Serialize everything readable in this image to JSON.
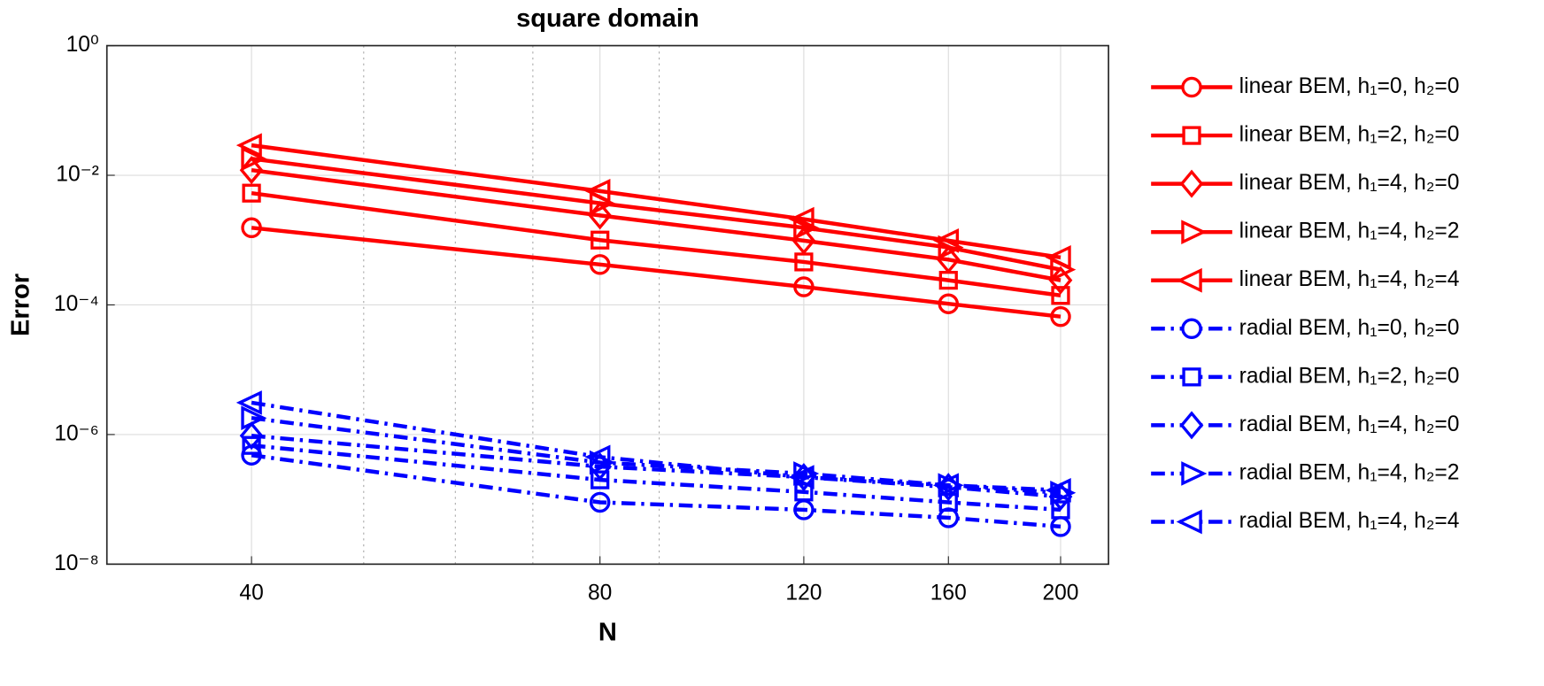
{
  "chart_data": {
    "type": "line",
    "title": "square domain",
    "xlabel": "N",
    "ylabel": "Error",
    "xscale": "log",
    "yscale": "log",
    "grid": true,
    "legend": "outside-right",
    "xlim": [
      30,
      220
    ],
    "xticks": [
      40,
      80,
      120,
      160,
      200
    ],
    "xminorticks": [
      50,
      60,
      70,
      90
    ],
    "ylim": [
      1e-08,
      1
    ],
    "yticks": [
      {
        "value": 1e-08,
        "label": "10⁻⁸"
      },
      {
        "value": 1e-06,
        "label": "10⁻⁶"
      },
      {
        "value": 0.0001,
        "label": "10⁻⁴"
      },
      {
        "value": 0.01,
        "label": "10⁻²"
      },
      {
        "value": 1,
        "label": "10⁰"
      }
    ],
    "x": [
      40,
      80,
      120,
      160,
      200
    ],
    "series": [
      {
        "name": "linear BEM, h₁=0, h₂=0",
        "color": "#ff0000",
        "marker": "circle",
        "linestyle": "solid",
        "values": [
          0.00155,
          0.00042,
          0.00019,
          0.000104,
          6.6e-05
        ]
      },
      {
        "name": "linear BEM, h₁=2, h₂=0",
        "color": "#ff0000",
        "marker": "square",
        "linestyle": "solid",
        "values": [
          0.0053,
          0.001,
          0.00046,
          0.00024,
          0.00014
        ]
      },
      {
        "name": "linear BEM, h₁=4, h₂=0",
        "color": "#ff0000",
        "marker": "diamond",
        "linestyle": "solid",
        "values": [
          0.012,
          0.0024,
          0.00098,
          0.0005,
          0.00024
        ]
      },
      {
        "name": "linear BEM, h₁=4, h₂=2",
        "color": "#ff0000",
        "marker": "triangle-right",
        "linestyle": "solid",
        "values": [
          0.018,
          0.0037,
          0.00155,
          0.00077,
          0.00035
        ]
      },
      {
        "name": "linear BEM, h₁=4, h₂=4",
        "color": "#ff0000",
        "marker": "triangle-left",
        "linestyle": "solid",
        "values": [
          0.029,
          0.0057,
          0.0021,
          0.00098,
          0.00054
        ]
      },
      {
        "name": "radial BEM, h₁=0, h₂=0",
        "color": "#0000ff",
        "marker": "circle",
        "linestyle": "dashdot",
        "values": [
          4.8e-07,
          9e-08,
          6.9e-08,
          5.2e-08,
          3.8e-08
        ]
      },
      {
        "name": "radial BEM, h₁=2, h₂=0",
        "color": "#0000ff",
        "marker": "square",
        "linestyle": "dashdot",
        "values": [
          6.8e-07,
          2e-07,
          1.3e-07,
          9e-08,
          6.9e-08
        ]
      },
      {
        "name": "radial BEM, h₁=4, h₂=0",
        "color": "#0000ff",
        "marker": "diamond",
        "linestyle": "dashdot",
        "values": [
          9.6e-07,
          3.2e-07,
          2.2e-07,
          1.55e-07,
          1.1e-07
        ]
      },
      {
        "name": "radial BEM, h₁=4, h₂=2",
        "color": "#0000ff",
        "marker": "triangle-right",
        "linestyle": "dashdot",
        "values": [
          1.8e-06,
          3.7e-07,
          2.5e-07,
          1.65e-07,
          1.26e-07
        ]
      },
      {
        "name": "radial BEM, h₁=4, h₂=4",
        "color": "#0000ff",
        "marker": "triangle-left",
        "linestyle": "dashdot",
        "values": [
          3.1e-06,
          4.5e-07,
          2.2e-07,
          1.65e-07,
          1.38e-07
        ]
      }
    ]
  }
}
